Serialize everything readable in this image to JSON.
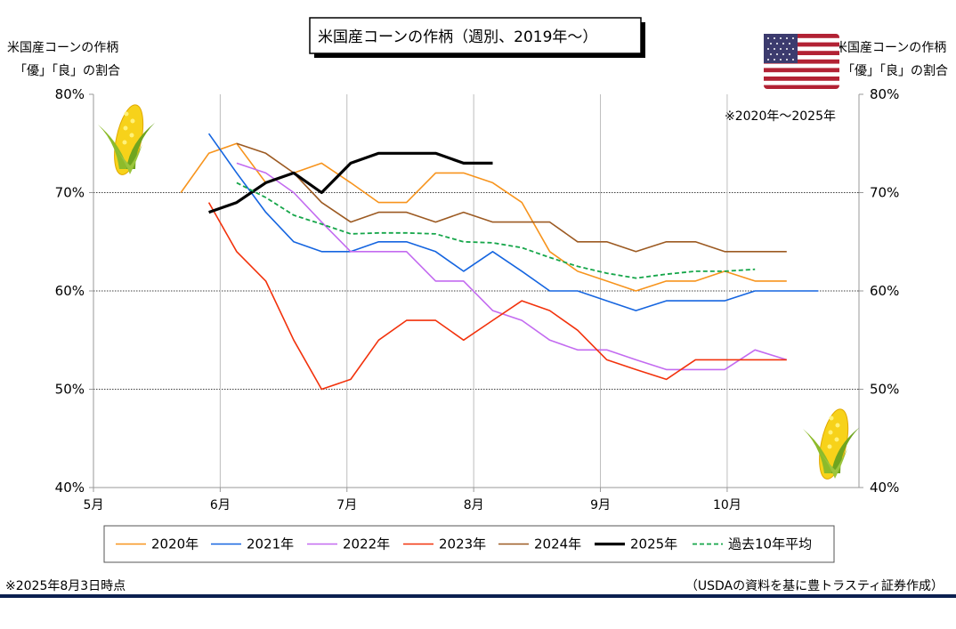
{
  "title": "米国産コーンの作柄（週別、2019年～）",
  "left_axis_title": [
    "米国産コーンの作柄",
    "「優」「良」の割合"
  ],
  "right_axis_title": [
    "米国産コーンの作柄",
    "「優」「良」の割合"
  ],
  "right_note": "※2020年～2025年",
  "footnote_left": "※2025年8月3日時点",
  "footnote_right": "（USDAの資料を基に豊トラスティ証券作成）",
  "icons": {
    "flag": "us-flag-icon",
    "corn": "corn-icon"
  },
  "chart_data": {
    "type": "line",
    "y_ticks": [
      "80%",
      "70%",
      "60%",
      "50%",
      "40%"
    ],
    "y_tick_values": [
      80,
      70,
      60,
      50,
      40
    ],
    "ylim": [
      40,
      80
    ],
    "x_ticks": [
      "5月",
      "6月",
      "7月",
      "8月",
      "9月",
      "10月"
    ],
    "x_tick_values": [
      5,
      6,
      7,
      8,
      9,
      10
    ],
    "xlim": [
      5,
      11.04
    ],
    "grid": true,
    "legend_position": "bottom",
    "series": [
      {
        "name": "2020年",
        "color": "#F7941D",
        "style": "solid",
        "x": [
          5.69,
          5.91,
          6.13,
          6.36,
          6.58,
          6.8,
          7.03,
          7.25,
          7.47,
          7.7,
          7.92,
          8.15,
          8.38,
          8.6,
          8.82,
          9.05,
          9.28,
          9.52,
          9.75,
          9.98,
          10.22,
          10.47
        ],
        "y": [
          70,
          74,
          75,
          71,
          72,
          73,
          71,
          69,
          69,
          72,
          72,
          71,
          69,
          64,
          62,
          61,
          60,
          61,
          61,
          62,
          61,
          61
        ]
      },
      {
        "name": "2021年",
        "color": "#1565E0",
        "style": "solid",
        "x": [
          5.91,
          6.13,
          6.36,
          6.58,
          6.8,
          7.03,
          7.25,
          7.47,
          7.7,
          7.92,
          8.15,
          8.38,
          8.6,
          8.82,
          9.05,
          9.28,
          9.52,
          9.75,
          9.98,
          10.22,
          10.47,
          10.72
        ],
        "y": [
          76,
          72,
          68,
          65,
          64,
          64,
          65,
          65,
          64,
          62,
          64,
          62,
          60,
          60,
          59,
          58,
          59,
          59,
          59,
          60,
          60,
          60
        ]
      },
      {
        "name": "2022年",
        "color": "#C36BF0",
        "style": "solid",
        "x": [
          6.13,
          6.36,
          6.58,
          6.8,
          7.03,
          7.25,
          7.47,
          7.7,
          7.92,
          8.15,
          8.38,
          8.6,
          8.82,
          9.05,
          9.28,
          9.52,
          9.75,
          9.98,
          10.22,
          10.47
        ],
        "y": [
          73,
          72,
          70,
          67,
          64,
          64,
          64,
          61,
          61,
          58,
          57,
          55,
          54,
          54,
          53,
          52,
          52,
          52,
          54,
          53
        ]
      },
      {
        "name": "2023年",
        "color": "#F2320C",
        "style": "solid",
        "x": [
          5.91,
          6.13,
          6.36,
          6.58,
          6.8,
          7.03,
          7.25,
          7.47,
          7.7,
          7.92,
          8.15,
          8.38,
          8.6,
          8.82,
          9.05,
          9.28,
          9.52,
          9.75,
          9.98,
          10.22,
          10.47
        ],
        "y": [
          69,
          64,
          61,
          55,
          50,
          51,
          55,
          57,
          57,
          55,
          57,
          59,
          58,
          56,
          53,
          52,
          51,
          53,
          53,
          53,
          53
        ]
      },
      {
        "name": "2024年",
        "color": "#9C5A22",
        "style": "solid",
        "x": [
          6.13,
          6.36,
          6.58,
          6.8,
          7.03,
          7.25,
          7.47,
          7.7,
          7.92,
          8.15,
          8.38,
          8.6,
          8.82,
          9.05,
          9.28,
          9.52,
          9.75,
          9.98,
          10.22,
          10.47
        ],
        "y": [
          75,
          74,
          72,
          69,
          67,
          68,
          68,
          67,
          68,
          67,
          67,
          67,
          65,
          65,
          64,
          65,
          65,
          64,
          64,
          64
        ]
      },
      {
        "name": "2025年",
        "color": "#000000",
        "style": "solid-thick",
        "x": [
          5.91,
          6.13,
          6.36,
          6.58,
          6.8,
          7.03,
          7.25,
          7.47,
          7.7,
          7.92,
          8.15
        ],
        "y": [
          68,
          69,
          71,
          72,
          70,
          73,
          74,
          74,
          74,
          73,
          73
        ]
      },
      {
        "name": "過去10年平均",
        "color": "#16A64A",
        "style": "dashed",
        "x": [
          6.13,
          6.36,
          6.58,
          6.8,
          7.03,
          7.25,
          7.47,
          7.7,
          7.92,
          8.15,
          8.38,
          8.6,
          8.82,
          9.05,
          9.28,
          9.52,
          9.75,
          9.98,
          10.22
        ],
        "y": [
          71,
          69.5,
          67.7,
          66.8,
          65.8,
          65.9,
          65.9,
          65.8,
          65,
          64.9,
          64.4,
          63.4,
          62.5,
          61.8,
          61.3,
          61.7,
          62,
          62,
          62.2
        ]
      }
    ]
  }
}
